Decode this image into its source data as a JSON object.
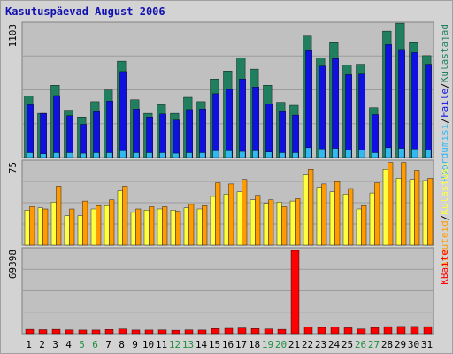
{
  "title": "Kasutuspäevad August 2006",
  "chart_data": [
    {
      "type": "bar",
      "ymax_label": "1103",
      "ylim": [
        0,
        1103
      ],
      "categories": [
        "1",
        "2",
        "3",
        "4",
        "5",
        "6",
        "7",
        "8",
        "9",
        "10",
        "11",
        "12",
        "13",
        "14",
        "15",
        "16",
        "17",
        "18",
        "19",
        "20",
        "21",
        "22",
        "23",
        "24",
        "25",
        "26",
        "27",
        "28",
        "29",
        "30",
        "31"
      ],
      "weekend_categories": [
        "5",
        "6",
        "12",
        "13",
        "19",
        "20",
        "26",
        "27"
      ],
      "series": [
        {
          "name": "Külastajad",
          "color": "#1f7f5f",
          "values": [
            500,
            360,
            590,
            385,
            330,
            455,
            550,
            785,
            470,
            360,
            430,
            360,
            490,
            455,
            640,
            705,
            810,
            720,
            590,
            450,
            425,
            990,
            810,
            935,
            755,
            760,
            405,
            1030,
            1095,
            935,
            830
          ]
        },
        {
          "name": "Faile",
          "color": "#1010e0",
          "values": [
            430,
            360,
            505,
            340,
            270,
            380,
            460,
            700,
            395,
            330,
            355,
            305,
            390,
            395,
            520,
            555,
            640,
            575,
            435,
            380,
            345,
            870,
            745,
            805,
            675,
            680,
            350,
            920,
            880,
            855,
            760
          ]
        },
        {
          "name": "Pöördumisi",
          "color": "#33b8f0",
          "values": [
            40,
            30,
            40,
            40,
            35,
            40,
            40,
            55,
            40,
            40,
            40,
            35,
            40,
            40,
            55,
            55,
            50,
            55,
            45,
            40,
            40,
            80,
            70,
            75,
            60,
            60,
            40,
            80,
            75,
            70,
            60
          ]
        }
      ]
    },
    {
      "type": "bar",
      "ymax_label": "75",
      "ylim": [
        0,
        75
      ],
      "series": [
        {
          "name": "Külastusi",
          "color": "#ffff40",
          "values": [
            31,
            33,
            38,
            26,
            26,
            32,
            35,
            48,
            29,
            31,
            32,
            31,
            33,
            32,
            43,
            45,
            47,
            40,
            37,
            38,
            39,
            62,
            51,
            47,
            45,
            32,
            46,
            67,
            59,
            58,
            57
          ]
        },
        {
          "name": "Arvuteid",
          "color": "#ff9a00",
          "values": [
            34,
            32,
            52,
            32,
            39,
            35,
            40,
            52,
            32,
            34,
            34,
            30,
            36,
            35,
            55,
            54,
            58,
            44,
            40,
            34,
            41,
            67,
            54,
            56,
            50,
            35,
            55,
            73,
            73,
            66,
            59
          ]
        }
      ]
    },
    {
      "type": "bar",
      "ymax_label": "69398",
      "ylim": [
        0,
        69398
      ],
      "series": [
        {
          "name": "KBaite",
          "color": "#ff0000",
          "values": [
            3600,
            3300,
            3600,
            3100,
            3000,
            3000,
            3500,
            3900,
            3000,
            3000,
            3100,
            2900,
            3200,
            3000,
            4200,
            4400,
            4700,
            4200,
            3900,
            3600,
            69398,
            5500,
            5200,
            5700,
            4900,
            3900,
            5100,
            5800,
            6000,
            6000,
            5800
          ]
        }
      ]
    }
  ]
}
